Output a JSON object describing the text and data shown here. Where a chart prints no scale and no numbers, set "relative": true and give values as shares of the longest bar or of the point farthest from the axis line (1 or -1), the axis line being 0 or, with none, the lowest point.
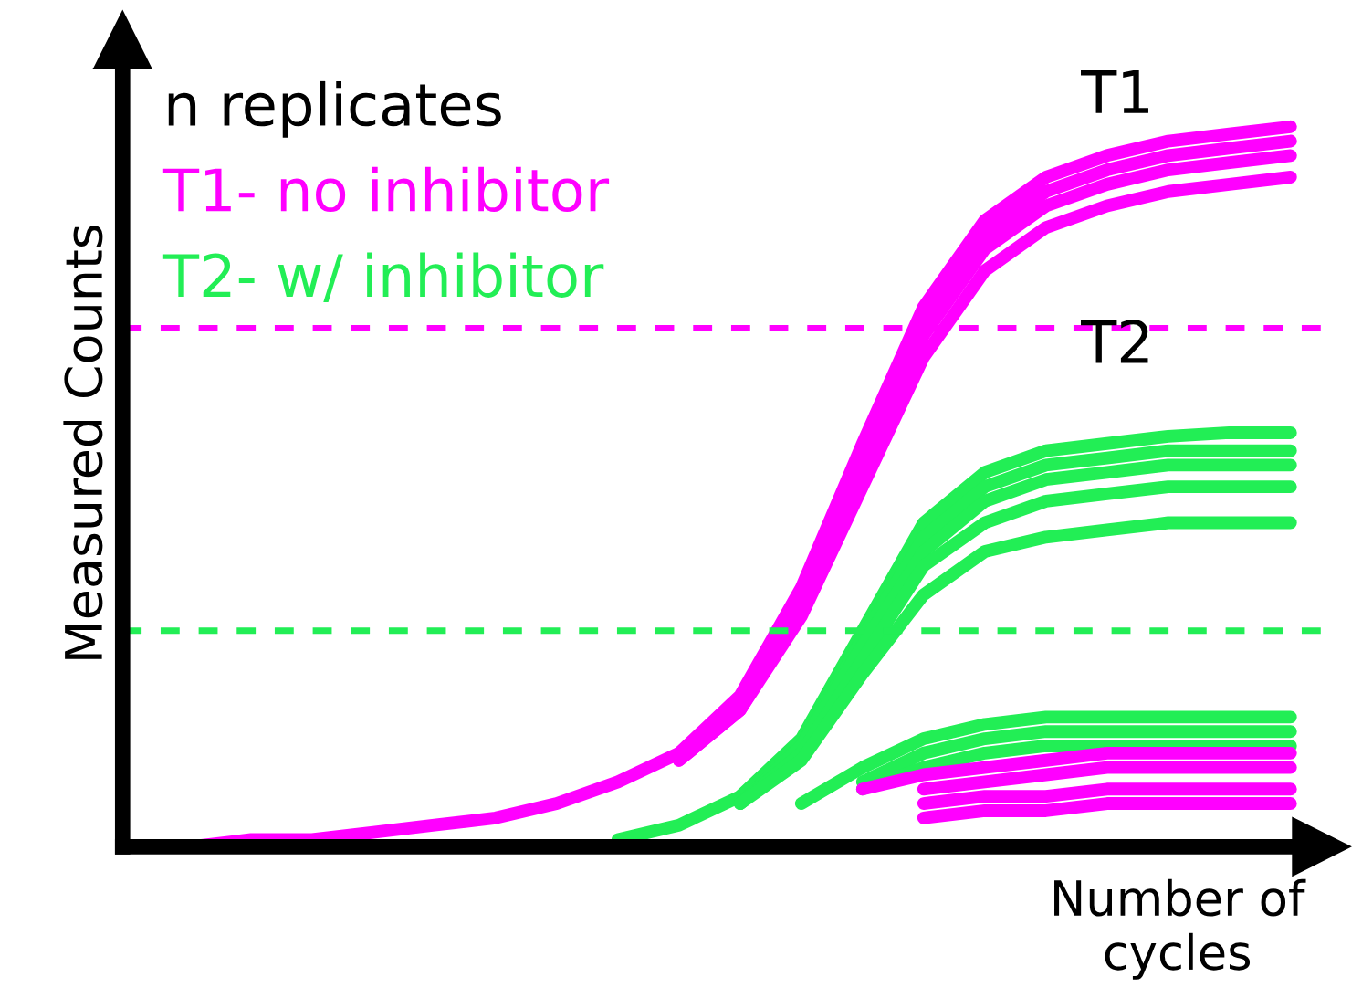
{
  "chart_data": {
    "type": "line",
    "relative": true,
    "xlabel": "Number of\ncycles",
    "ylabel": "Measured Counts",
    "legend_title": "n replicates",
    "legend": "top left",
    "grid": false,
    "marker": "none",
    "line_style": "solid",
    "categories": [
      null,
      null,
      null,
      null,
      null,
      null,
      null,
      null,
      null,
      null,
      null,
      null,
      null,
      null,
      null,
      null,
      null,
      null,
      null,
      null
    ],
    "series": [
      {
        "name": "T1- no inhibitor",
        "color": "#ff00ff",
        "values": [
          0,
          0,
          0.01,
          0.01,
          0.02,
          0.03,
          0.04,
          0.06,
          0.09,
          0.13,
          0.21,
          0.36,
          0.56,
          0.75,
          0.87,
          0.93,
          0.96,
          0.98,
          0.99,
          1.0
        ]
      },
      {
        "color": "#ff00ff",
        "values": [
          null,
          null,
          null,
          null,
          null,
          null,
          null,
          null,
          null,
          0.13,
          0.2,
          0.34,
          0.54,
          0.73,
          0.85,
          0.91,
          0.94,
          0.96,
          0.97,
          0.98
        ]
      },
      {
        "color": "#ff00ff",
        "values": [
          null,
          null,
          null,
          null,
          null,
          null,
          null,
          null,
          null,
          0.12,
          0.19,
          0.33,
          0.52,
          0.71,
          0.83,
          0.89,
          0.92,
          0.94,
          0.95,
          0.96
        ]
      },
      {
        "color": "#ff00ff",
        "values": [
          null,
          null,
          null,
          null,
          null,
          null,
          null,
          null,
          null,
          0.12,
          0.19,
          0.32,
          0.5,
          0.68,
          0.8,
          0.86,
          0.89,
          0.91,
          0.92,
          0.93
        ]
      },
      {
        "name": "T2- w/ inhibitor",
        "color": "#22ee55",
        "values": [
          null,
          null,
          null,
          null,
          null,
          null,
          null,
          null,
          0.01,
          0.03,
          0.07,
          0.15,
          0.3,
          0.45,
          0.52,
          0.55,
          0.56,
          0.57,
          0.575,
          0.575
        ]
      },
      {
        "color": "#22ee55",
        "values": [
          null,
          null,
          null,
          null,
          null,
          null,
          null,
          null,
          null,
          null,
          0.07,
          0.14,
          0.29,
          0.43,
          0.5,
          0.53,
          0.54,
          0.55,
          0.55,
          0.55
        ]
      },
      {
        "color": "#22ee55",
        "values": [
          null,
          null,
          null,
          null,
          null,
          null,
          null,
          null,
          null,
          null,
          0.06,
          0.14,
          0.28,
          0.41,
          0.48,
          0.51,
          0.52,
          0.53,
          0.53,
          0.53
        ]
      },
      {
        "color": "#22ee55",
        "values": [
          null,
          null,
          null,
          null,
          null,
          null,
          null,
          null,
          null,
          null,
          0.06,
          0.13,
          0.26,
          0.39,
          0.45,
          0.48,
          0.49,
          0.5,
          0.5,
          0.5
        ]
      },
      {
        "color": "#22ee55",
        "values": [
          null,
          null,
          null,
          null,
          null,
          null,
          null,
          null,
          null,
          null,
          0.06,
          0.12,
          0.24,
          0.35,
          0.41,
          0.43,
          0.44,
          0.45,
          0.45,
          0.45
        ]
      },
      {
        "color": "#22ee55",
        "values": [
          null,
          null,
          null,
          null,
          null,
          null,
          null,
          null,
          null,
          null,
          null,
          0.06,
          0.11,
          0.15,
          0.17,
          0.18,
          0.18,
          0.18,
          0.18,
          0.18
        ]
      },
      {
        "color": "#22ee55",
        "values": [
          null,
          null,
          null,
          null,
          null,
          null,
          null,
          null,
          null,
          null,
          null,
          null,
          0.09,
          0.13,
          0.15,
          0.16,
          0.16,
          0.16,
          0.16,
          0.16
        ]
      },
      {
        "color": "#22ee55",
        "values": [
          null,
          null,
          null,
          null,
          null,
          null,
          null,
          null,
          null,
          null,
          null,
          null,
          0.08,
          0.11,
          0.13,
          0.14,
          0.14,
          0.14,
          0.14,
          0.14
        ]
      },
      {
        "color": "#ff00ff",
        "values": [
          null,
          null,
          null,
          null,
          null,
          null,
          null,
          null,
          null,
          null,
          null,
          null,
          0.08,
          0.1,
          0.11,
          0.12,
          0.13,
          0.13,
          0.13,
          0.13
        ]
      },
      {
        "color": "#ff00ff",
        "values": [
          null,
          null,
          null,
          null,
          null,
          null,
          null,
          null,
          null,
          null,
          null,
          null,
          null,
          0.08,
          0.09,
          0.1,
          0.11,
          0.11,
          0.11,
          0.11
        ]
      },
      {
        "color": "#ff00ff",
        "values": [
          null,
          null,
          null,
          null,
          null,
          null,
          null,
          null,
          null,
          null,
          null,
          null,
          null,
          0.06,
          0.07,
          0.07,
          0.08,
          0.08,
          0.08,
          0.08
        ]
      },
      {
        "color": "#ff00ff",
        "values": [
          null,
          null,
          null,
          null,
          null,
          null,
          null,
          null,
          null,
          null,
          null,
          null,
          null,
          0.04,
          0.05,
          0.05,
          0.06,
          0.06,
          0.06,
          0.06
        ]
      }
    ],
    "ref_lines": [
      {
        "axis": "y",
        "value": 0.72,
        "color": "#ff00ff",
        "line_style": "dashed"
      },
      {
        "axis": "y",
        "value": 0.3,
        "color": "#22ee55",
        "line_style": "dashed"
      }
    ],
    "annotations": [
      "T1",
      "T2"
    ]
  }
}
